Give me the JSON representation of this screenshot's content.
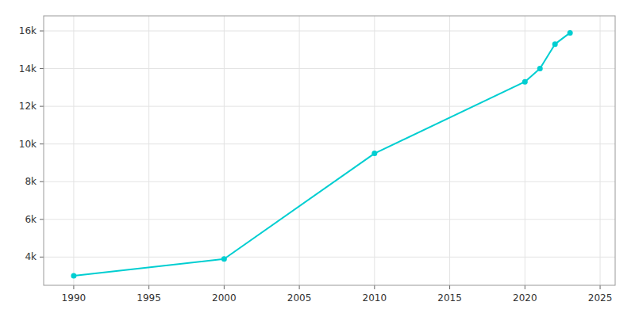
{
  "chart_data": {
    "type": "line",
    "x": [
      1990,
      2000,
      2010,
      2020,
      2021,
      2022,
      2023
    ],
    "values": [
      3000,
      3900,
      9500,
      13300,
      14000,
      15300,
      15900
    ],
    "color": "#00CED1",
    "marker": "o",
    "xlim": [
      1988,
      2026
    ],
    "ylim": [
      2500,
      16800
    ],
    "xticks": [
      1990,
      1995,
      2000,
      2005,
      2010,
      2015,
      2020,
      2025
    ],
    "yticks": [
      {
        "value": 4000,
        "label": "4k"
      },
      {
        "value": 6000,
        "label": "6k"
      },
      {
        "value": 8000,
        "label": "8k"
      },
      {
        "value": 10000,
        "label": "10k"
      },
      {
        "value": 12000,
        "label": "12k"
      },
      {
        "value": 14000,
        "label": "14k"
      },
      {
        "value": 16000,
        "label": "16k"
      }
    ],
    "grid": true
  }
}
